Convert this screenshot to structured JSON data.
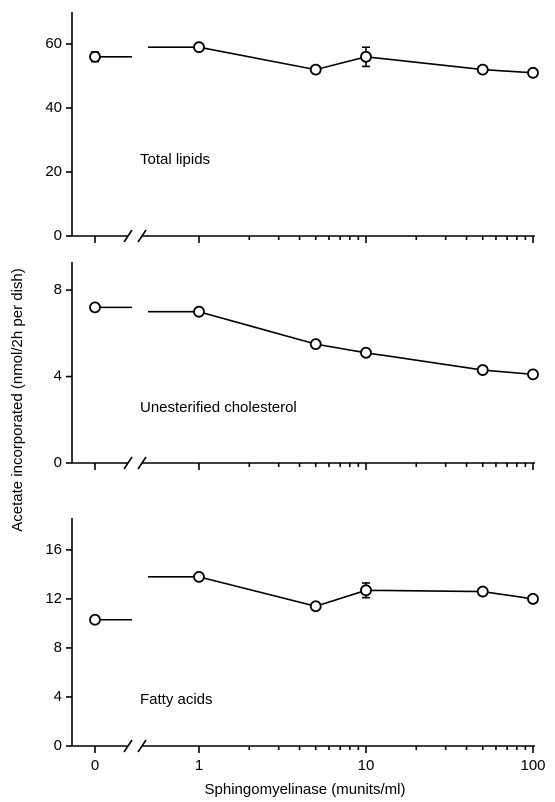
{
  "chart_data": [
    {
      "type": "line",
      "annotation": "Total lipids",
      "x": [
        0,
        1,
        5,
        10,
        50,
        100
      ],
      "values": [
        56,
        59,
        52,
        56,
        52,
        51
      ],
      "errors": [
        1.5,
        null,
        null,
        3,
        null,
        null
      ],
      "xlim": [
        1,
        100
      ],
      "xticks": [
        0,
        1,
        10,
        100
      ],
      "minor_xticks": [
        2,
        3,
        4,
        5,
        6,
        7,
        8,
        9,
        20,
        30,
        40,
        50,
        60,
        70,
        80,
        90
      ],
      "log_x": true,
      "axis_break": true,
      "color": "#000000",
      "ylim": [
        0,
        70
      ],
      "yticks": [
        0,
        20,
        40,
        60
      ]
    },
    {
      "type": "line",
      "annotation": "Unesterified cholesterol",
      "y_label": "Acetate incorporated (nmol/2h per dish)",
      "x": [
        0,
        1,
        5,
        10,
        50,
        100
      ],
      "values": [
        7.2,
        7.0,
        5.5,
        5.1,
        4.3,
        4.1
      ],
      "errors": [
        null,
        null,
        null,
        null,
        null,
        null
      ],
      "xlim": [
        1,
        100
      ],
      "xticks": [
        0,
        1,
        10,
        100
      ],
      "minor_xticks": [
        2,
        3,
        4,
        5,
        6,
        7,
        8,
        9,
        20,
        30,
        40,
        50,
        60,
        70,
        80,
        90
      ],
      "log_x": true,
      "axis_break": true,
      "color": "#000000",
      "ylim": [
        0,
        9.3
      ],
      "yticks": [
        0,
        4,
        8
      ]
    },
    {
      "type": "line",
      "annotation": "Fatty acids",
      "x_label": "Sphingomyelinase (munits/ml)",
      "x": [
        0,
        1,
        5,
        10,
        50,
        100
      ],
      "values": [
        10.3,
        13.8,
        11.4,
        12.7,
        12.6,
        12.0
      ],
      "errors": [
        null,
        null,
        null,
        0.6,
        null,
        null
      ],
      "xlim": [
        1,
        100
      ],
      "xticks": [
        0,
        1,
        10,
        100
      ],
      "minor_xticks": [
        2,
        3,
        4,
        5,
        6,
        7,
        8,
        9,
        20,
        30,
        40,
        50,
        60,
        70,
        80,
        90
      ],
      "log_x": true,
      "axis_break": true,
      "color": "#000000",
      "ylim": [
        0,
        18.6
      ],
      "yticks": [
        0,
        4,
        8,
        12,
        16
      ]
    }
  ]
}
